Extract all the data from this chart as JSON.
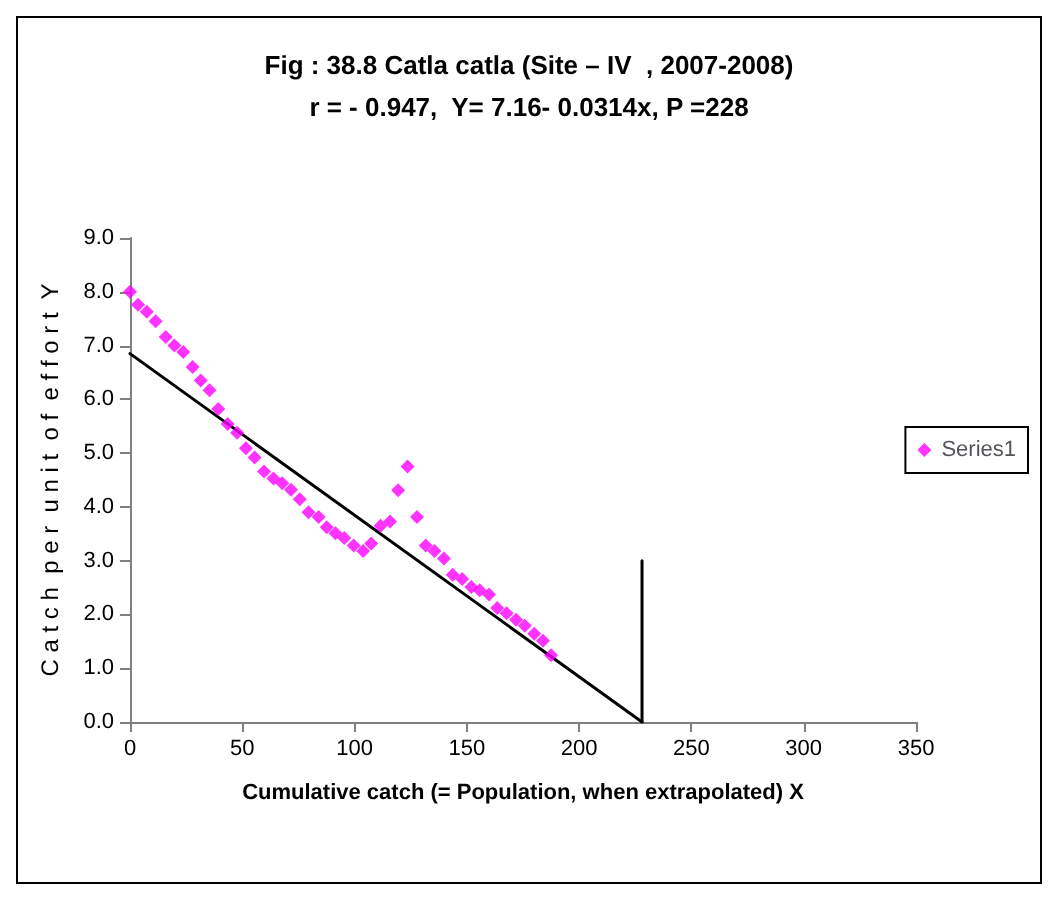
{
  "chart_data": {
    "type": "scatter",
    "title": "Fig : 38.8 Catla catla (Site – IV  , 2007-2008)",
    "subtitle": "r = - 0.947,  Y= 7.16- 0.0314x, P =228",
    "xlabel": "Cumulative catch (= Population, when extrapolated) X",
    "ylabel": "C a t c h  p e r  u n i t  o f  e f f o r t  Y",
    "series": [
      {
        "name": "Series1",
        "color": "#ff00ff",
        "marker": "diamond",
        "x": [
          0,
          3.6,
          7.5,
          11.4,
          15.9,
          19.8,
          23.7,
          27.9,
          31.5,
          35.4,
          39.3,
          43.5,
          47.7,
          51.6,
          55.5,
          59.7,
          63.9,
          67.8,
          71.7,
          75.6,
          79.5,
          84,
          87.6,
          91.5,
          95.4,
          99.6,
          103.8,
          107.4,
          111.6,
          115.8,
          119.4,
          123.6,
          127.8,
          131.7,
          135.6,
          139.8,
          143.7,
          147.9,
          152,
          155.7,
          159.9,
          163.5,
          167.7,
          171.9,
          175.8,
          180,
          183.9,
          187.5
        ],
        "values": [
          8.0,
          7.76,
          7.63,
          7.45,
          7.16,
          7.0,
          6.88,
          6.6,
          6.35,
          6.17,
          5.82,
          5.54,
          5.38,
          5.09,
          4.92,
          4.66,
          4.53,
          4.44,
          4.32,
          4.14,
          3.9,
          3.81,
          3.62,
          3.51,
          3.42,
          3.28,
          3.18,
          3.32,
          3.65,
          3.73,
          4.31,
          4.75,
          3.81,
          3.28,
          3.18,
          3.04,
          2.74,
          2.66,
          2.51,
          2.45,
          2.37,
          2.12,
          2.02,
          1.9,
          1.79,
          1.64,
          1.51,
          1.24
        ]
      },
      {
        "type": "line",
        "color": "#000000",
        "marker": "none",
        "line_style": "solid",
        "x": [
          0,
          228
        ],
        "values": [
          6.85,
          0
        ]
      },
      {
        "type": "line",
        "color": "#000000",
        "marker": "none",
        "line_style": "solid",
        "x": [
          228,
          228
        ],
        "values": [
          3.0,
          0
        ]
      }
    ],
    "xlim": [
      0,
      350
    ],
    "xticks": [
      0,
      50,
      100,
      150,
      200,
      250,
      300,
      350
    ],
    "ylim": [
      0,
      9
    ],
    "yticks": [
      {
        "value": 0,
        "label": "0.0"
      },
      {
        "value": 1,
        "label": "1.0"
      },
      {
        "value": 2,
        "label": "2.0"
      },
      {
        "value": 3,
        "label": "3.0"
      },
      {
        "value": 4,
        "label": "4.0"
      },
      {
        "value": 5,
        "label": "5.0"
      },
      {
        "value": 6,
        "label": "6.0"
      },
      {
        "value": 7,
        "label": "7.0"
      },
      {
        "value": 8,
        "label": "8.0"
      },
      {
        "value": 9,
        "label": "9.0"
      }
    ],
    "grid": false,
    "legend": "right"
  }
}
